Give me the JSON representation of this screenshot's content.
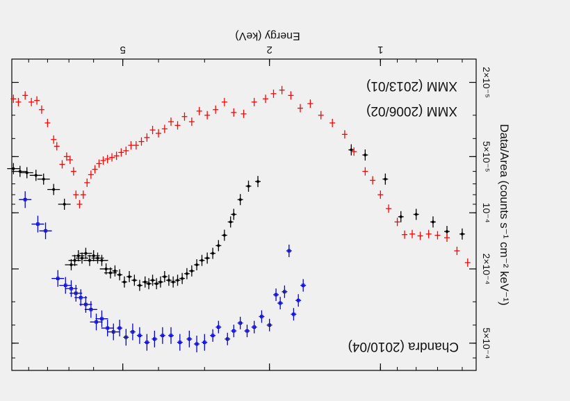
{
  "chart_data": {
    "type": "scatter",
    "xlabel": "Energy (keV)",
    "ylabel": "Data/Area (counts s⁻¹ cm⁻² keV⁻¹)",
    "xscale": "log",
    "yscale": "log",
    "xlim": [
      0.55,
      10.0
    ],
    "ylim": [
      1.5e-05,
      0.0007
    ],
    "x_ticks": [
      {
        "v": 1,
        "label": "1"
      },
      {
        "v": 2,
        "label": "2"
      },
      {
        "v": 5,
        "label": "5"
      }
    ],
    "y_ticks": [
      {
        "v": 2e-05,
        "label": "2×10⁻⁵"
      },
      {
        "v": 5e-05,
        "label": "5×10⁻⁵"
      },
      {
        "v": 0.0001,
        "label": "10⁻⁴"
      },
      {
        "v": 0.0002,
        "label": "2×10⁻⁴"
      },
      {
        "v": 0.0005,
        "label": "5×10⁻⁴"
      }
    ],
    "orientation": "rotated 180°",
    "legend_position": "inside",
    "series": [
      {
        "name": "XMM (2006/02)",
        "color": "#000000",
        "points": [
          [
            0.6,
            0.00013
          ],
          [
            0.66,
            0.000126
          ],
          [
            0.72,
            0.000112
          ],
          [
            0.8,
            0.000102
          ],
          [
            0.88,
            0.000105
          ],
          [
            0.97,
            6.6e-05
          ],
          [
            1.1,
            4.9e-05
          ],
          [
            1.2,
            4.6e-05
          ],
          [
            2.15,
            6.8e-05
          ],
          [
            2.28,
            7.2e-05
          ],
          [
            2.4,
            8.5e-05
          ],
          [
            2.5,
            0.000102
          ],
          [
            2.55,
            0.000112
          ],
          [
            2.65,
            0.000132
          ],
          [
            2.75,
            0.00015
          ],
          [
            2.85,
            0.000165
          ],
          [
            2.95,
            0.000175
          ],
          [
            3.05,
            0.00018
          ],
          [
            3.15,
            0.00019
          ],
          [
            3.25,
            0.000205
          ],
          [
            3.35,
            0.000212
          ],
          [
            3.45,
            0.000225
          ],
          [
            3.55,
            0.00023
          ],
          [
            3.65,
            0.000235
          ],
          [
            3.75,
            0.00023
          ],
          [
            3.85,
            0.00022
          ],
          [
            3.95,
            0.000235
          ],
          [
            4.05,
            0.00024
          ],
          [
            4.15,
            0.00023
          ],
          [
            4.25,
            0.00024
          ],
          [
            4.35,
            0.000235
          ],
          [
            4.5,
            0.000245
          ],
          [
            4.65,
            0.00023
          ],
          [
            4.8,
            0.00022
          ],
          [
            4.95,
            0.000235
          ],
          [
            5.1,
            0.000215
          ],
          [
            5.25,
            0.000205
          ],
          [
            5.4,
            0.00021
          ],
          [
            5.55,
            0.0002
          ],
          [
            5.7,
            0.00018
          ],
          [
            5.85,
            0.000175
          ],
          [
            6.0,
            0.00017
          ],
          [
            6.15,
            0.00018
          ],
          [
            6.3,
            0.000165
          ],
          [
            6.45,
            0.000175
          ],
          [
            6.6,
            0.00017
          ],
          [
            6.75,
            0.00018
          ],
          [
            6.9,
            0.00019
          ],
          [
            7.2,
            9e-05
          ],
          [
            7.7,
            7.5e-05
          ],
          [
            8.2,
            6.6e-05
          ],
          [
            8.6,
            6.3e-05
          ],
          [
            9.1,
            6.1e-05
          ],
          [
            9.5,
            6e-05
          ],
          [
            9.9,
            5.8e-05
          ]
        ]
      },
      {
        "name": "XMM (2013/01)",
        "color": "#ff0000",
        "points": [
          [
            0.58,
            0.000185
          ],
          [
            0.62,
            0.00016
          ],
          [
            0.66,
            0.000136
          ],
          [
            0.7,
            0.000132
          ],
          [
            0.74,
            0.00013
          ],
          [
            0.78,
            0.000133
          ],
          [
            0.82,
            0.00013
          ],
          [
            0.86,
            0.000131
          ],
          [
            0.9,
            0.000112
          ],
          [
            0.95,
            9.5e-05
          ],
          [
            1.0,
            8e-05
          ],
          [
            1.05,
            6.7e-05
          ],
          [
            1.1,
            6e-05
          ],
          [
            1.18,
            4.7e-05
          ],
          [
            1.25,
            3.8e-05
          ],
          [
            1.35,
            3.3e-05
          ],
          [
            1.45,
            3e-05
          ],
          [
            1.55,
            2.6e-05
          ],
          [
            1.65,
            2.75e-05
          ],
          [
            1.75,
            2.35e-05
          ],
          [
            1.85,
            2.2e-05
          ],
          [
            1.95,
            2.3e-05
          ],
          [
            2.05,
            2.45e-05
          ],
          [
            2.2,
            2.55e-05
          ],
          [
            2.35,
            2.95e-05
          ],
          [
            2.5,
            2.9e-05
          ],
          [
            2.65,
            2.55e-05
          ],
          [
            2.8,
            2.8e-05
          ],
          [
            2.95,
            3e-05
          ],
          [
            3.1,
            2.85e-05
          ],
          [
            3.25,
            3.25e-05
          ],
          [
            3.4,
            3.05e-05
          ],
          [
            3.55,
            3.4e-05
          ],
          [
            3.7,
            3.25e-05
          ],
          [
            3.85,
            3.55e-05
          ],
          [
            4.0,
            3.75e-05
          ],
          [
            4.15,
            3.6e-05
          ],
          [
            4.3,
            3.95e-05
          ],
          [
            4.45,
            4.15e-05
          ],
          [
            4.6,
            4.35e-05
          ],
          [
            4.75,
            4.35e-05
          ],
          [
            4.9,
            4.65e-05
          ],
          [
            5.05,
            4.75e-05
          ],
          [
            5.2,
            4.95e-05
          ],
          [
            5.35,
            5.05e-05
          ],
          [
            5.5,
            5.15e-05
          ],
          [
            5.65,
            5.25e-05
          ],
          [
            5.8,
            5.45e-05
          ],
          [
            5.95,
            5.85e-05
          ],
          [
            6.1,
            6.25e-05
          ],
          [
            6.25,
            6.9e-05
          ],
          [
            6.4,
            8e-05
          ],
          [
            6.55,
            9e-05
          ],
          [
            6.7,
            8e-05
          ],
          [
            6.8,
            6e-05
          ],
          [
            6.95,
            5.2e-05
          ],
          [
            7.1,
            5e-05
          ],
          [
            7.3,
            5.5e-05
          ],
          [
            7.55,
            4.4e-05
          ],
          [
            7.7,
            4.05e-05
          ],
          [
            8.0,
            3.3e-05
          ],
          [
            8.3,
            2.8e-05
          ],
          [
            8.55,
            2.5e-05
          ],
          [
            8.85,
            2.55e-05
          ],
          [
            9.2,
            2.35e-05
          ],
          [
            9.6,
            2.55e-05
          ],
          [
            9.9,
            2.45e-05
          ]
        ]
      },
      {
        "name": "Chandra (2010/04)",
        "color": "#0000cc",
        "points": [
          [
            1.62,
            0.000245
          ],
          [
            1.67,
            0.000295
          ],
          [
            1.72,
            0.00035
          ],
          [
            1.77,
            0.00016
          ],
          [
            1.82,
            0.000265
          ],
          [
            1.87,
            0.000305
          ],
          [
            1.92,
            0.000275
          ],
          [
            2.0,
            0.0004
          ],
          [
            2.1,
            0.00036
          ],
          [
            2.2,
            0.00041
          ],
          [
            2.3,
            0.00043
          ],
          [
            2.4,
            0.00039
          ],
          [
            2.5,
            0.00043
          ],
          [
            2.6,
            0.000475
          ],
          [
            2.75,
            0.00041
          ],
          [
            2.85,
            0.000455
          ],
          [
            3.0,
            0.000495
          ],
          [
            3.15,
            0.000505
          ],
          [
            3.3,
            0.000475
          ],
          [
            3.5,
            0.000495
          ],
          [
            3.7,
            0.000455
          ],
          [
            3.9,
            0.000455
          ],
          [
            4.1,
            0.000475
          ],
          [
            4.3,
            0.000495
          ],
          [
            4.5,
            0.000455
          ],
          [
            4.7,
            0.000435
          ],
          [
            4.9,
            0.000465
          ],
          [
            5.1,
            0.000415
          ],
          [
            5.3,
            0.000435
          ],
          [
            5.5,
            0.000415
          ],
          [
            5.7,
            0.00037
          ],
          [
            5.9,
            0.000385
          ],
          [
            6.1,
            0.00033
          ],
          [
            6.3,
            0.00031
          ],
          [
            6.5,
            0.000285
          ],
          [
            6.7,
            0.00027
          ],
          [
            6.9,
            0.000255
          ],
          [
            7.15,
            0.000245
          ],
          [
            7.5,
            0.000225
          ],
          [
            8.1,
            0.000125
          ],
          [
            8.5,
            0.000115
          ],
          [
            9.2,
            8.5e-05
          ]
        ]
      }
    ]
  }
}
